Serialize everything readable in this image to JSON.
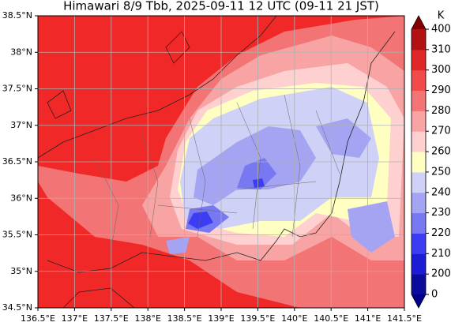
{
  "title": "Himawari 8/9 Tbb, 2025-09-11 12 UTC (09-11 21 JST)",
  "x_ticks": [
    {
      "value": 136.5,
      "label": "136.5°E"
    },
    {
      "value": 137,
      "label": "137°E"
    },
    {
      "value": 137.5,
      "label": "137.5°E"
    },
    {
      "value": 138,
      "label": "138°E"
    },
    {
      "value": 138.5,
      "label": "138.5°E"
    },
    {
      "value": 139,
      "label": "139°E"
    },
    {
      "value": 139.5,
      "label": "139.5°E"
    },
    {
      "value": 140,
      "label": "140°E"
    },
    {
      "value": 140.5,
      "label": "140.5°E"
    },
    {
      "value": 141,
      "label": "141°E"
    },
    {
      "value": 141.5,
      "label": "141.5°E"
    }
  ],
  "y_ticks": [
    {
      "value": 34.5,
      "label": "34.5°N"
    },
    {
      "value": 35,
      "label": "35°N"
    },
    {
      "value": 35.5,
      "label": "35.5°N"
    },
    {
      "value": 36,
      "label": "36°N"
    },
    {
      "value": 36.5,
      "label": "36.5°N"
    },
    {
      "value": 37,
      "label": "37°N"
    },
    {
      "value": 37.5,
      "label": "37.5°N"
    },
    {
      "value": 38,
      "label": "38°N"
    },
    {
      "value": 38.5,
      "label": "38.5°N"
    }
  ],
  "colorbar": {
    "unit": "K",
    "levels": [
      0,
      200,
      210,
      220,
      230,
      240,
      250,
      260,
      270,
      280,
      290,
      300,
      310,
      400
    ],
    "colors": [
      "#0c0c9c",
      "#1c1cd6",
      "#3c3cf2",
      "#7878f2",
      "#a4a4f2",
      "#cfd2f6",
      "#ffffc2",
      "#ffd0d0",
      "#f8a4a4",
      "#f27474",
      "#f04a4a",
      "#e02626",
      "#b21212"
    ],
    "under_color": "#00008a",
    "over_color": "#840000"
  }
}
